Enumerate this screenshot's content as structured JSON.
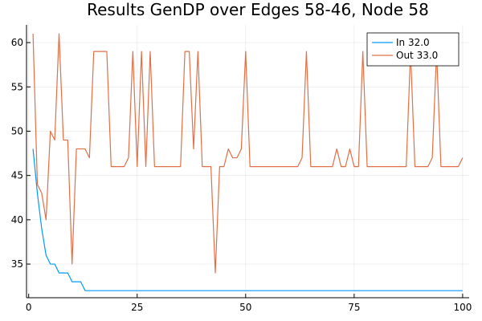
{
  "chart_data": {
    "type": "line",
    "title": "Results GenDP over Edges 58-46,  Node 58",
    "xlabel": "",
    "ylabel": "",
    "xlim": [
      -0.5,
      101.5
    ],
    "ylim": [
      31.2,
      62
    ],
    "x_ticks": [
      0,
      25,
      50,
      75,
      100
    ],
    "y_ticks": [
      35,
      40,
      45,
      50,
      55,
      60
    ],
    "grid": true,
    "legend_position": "top-right",
    "x": [
      1,
      2,
      3,
      4,
      5,
      6,
      7,
      8,
      9,
      10,
      11,
      12,
      13,
      14,
      15,
      16,
      17,
      18,
      19,
      20,
      21,
      22,
      23,
      24,
      25,
      26,
      27,
      28,
      29,
      30,
      31,
      32,
      33,
      34,
      35,
      36,
      37,
      38,
      39,
      40,
      41,
      42,
      43,
      44,
      45,
      46,
      47,
      48,
      49,
      50,
      51,
      52,
      53,
      54,
      55,
      56,
      57,
      58,
      59,
      60,
      61,
      62,
      63,
      64,
      65,
      66,
      67,
      68,
      69,
      70,
      71,
      72,
      73,
      74,
      75,
      76,
      77,
      78,
      79,
      80,
      81,
      82,
      83,
      84,
      85,
      86,
      87,
      88,
      89,
      90,
      91,
      92,
      93,
      94,
      95,
      96,
      97,
      98,
      99,
      100
    ],
    "series": [
      {
        "name": "In 32.0",
        "color": "#009af9",
        "values": [
          48,
          43,
          39,
          36,
          35,
          35,
          34,
          34,
          34,
          33,
          33,
          33,
          32,
          32,
          32,
          32,
          32,
          32,
          32,
          32,
          32,
          32,
          32,
          32,
          32,
          32,
          32,
          32,
          32,
          32,
          32,
          32,
          32,
          32,
          32,
          32,
          32,
          32,
          32,
          32,
          32,
          32,
          32,
          32,
          32,
          32,
          32,
          32,
          32,
          32,
          32,
          32,
          32,
          32,
          32,
          32,
          32,
          32,
          32,
          32,
          32,
          32,
          32,
          32,
          32,
          32,
          32,
          32,
          32,
          32,
          32,
          32,
          32,
          32,
          32,
          32,
          32,
          32,
          32,
          32,
          32,
          32,
          32,
          32,
          32,
          32,
          32,
          32,
          32,
          32,
          32,
          32,
          32,
          32,
          32,
          32,
          32,
          32,
          32,
          32
        ]
      },
      {
        "name": "Out 33.0",
        "color": "#e26f46",
        "values": [
          61,
          44,
          43,
          40,
          50,
          49,
          61,
          49,
          49,
          35,
          48,
          48,
          48,
          47,
          59,
          59,
          59,
          59,
          46,
          46,
          46,
          46,
          47,
          59,
          46,
          59,
          46,
          59,
          46,
          46,
          46,
          46,
          46,
          46,
          46,
          59,
          59,
          48,
          59,
          46,
          46,
          46,
          34,
          46,
          46,
          48,
          47,
          47,
          48,
          59,
          46,
          46,
          46,
          46,
          46,
          46,
          46,
          46,
          46,
          46,
          46,
          46,
          47,
          59,
          46,
          46,
          46,
          46,
          46,
          46,
          48,
          46,
          46,
          48,
          46,
          46,
          59,
          46,
          46,
          46,
          46,
          46,
          46,
          46,
          46,
          46,
          46,
          59,
          46,
          46,
          46,
          46,
          47,
          59,
          46,
          46,
          46,
          46,
          46,
          47
        ]
      }
    ]
  }
}
